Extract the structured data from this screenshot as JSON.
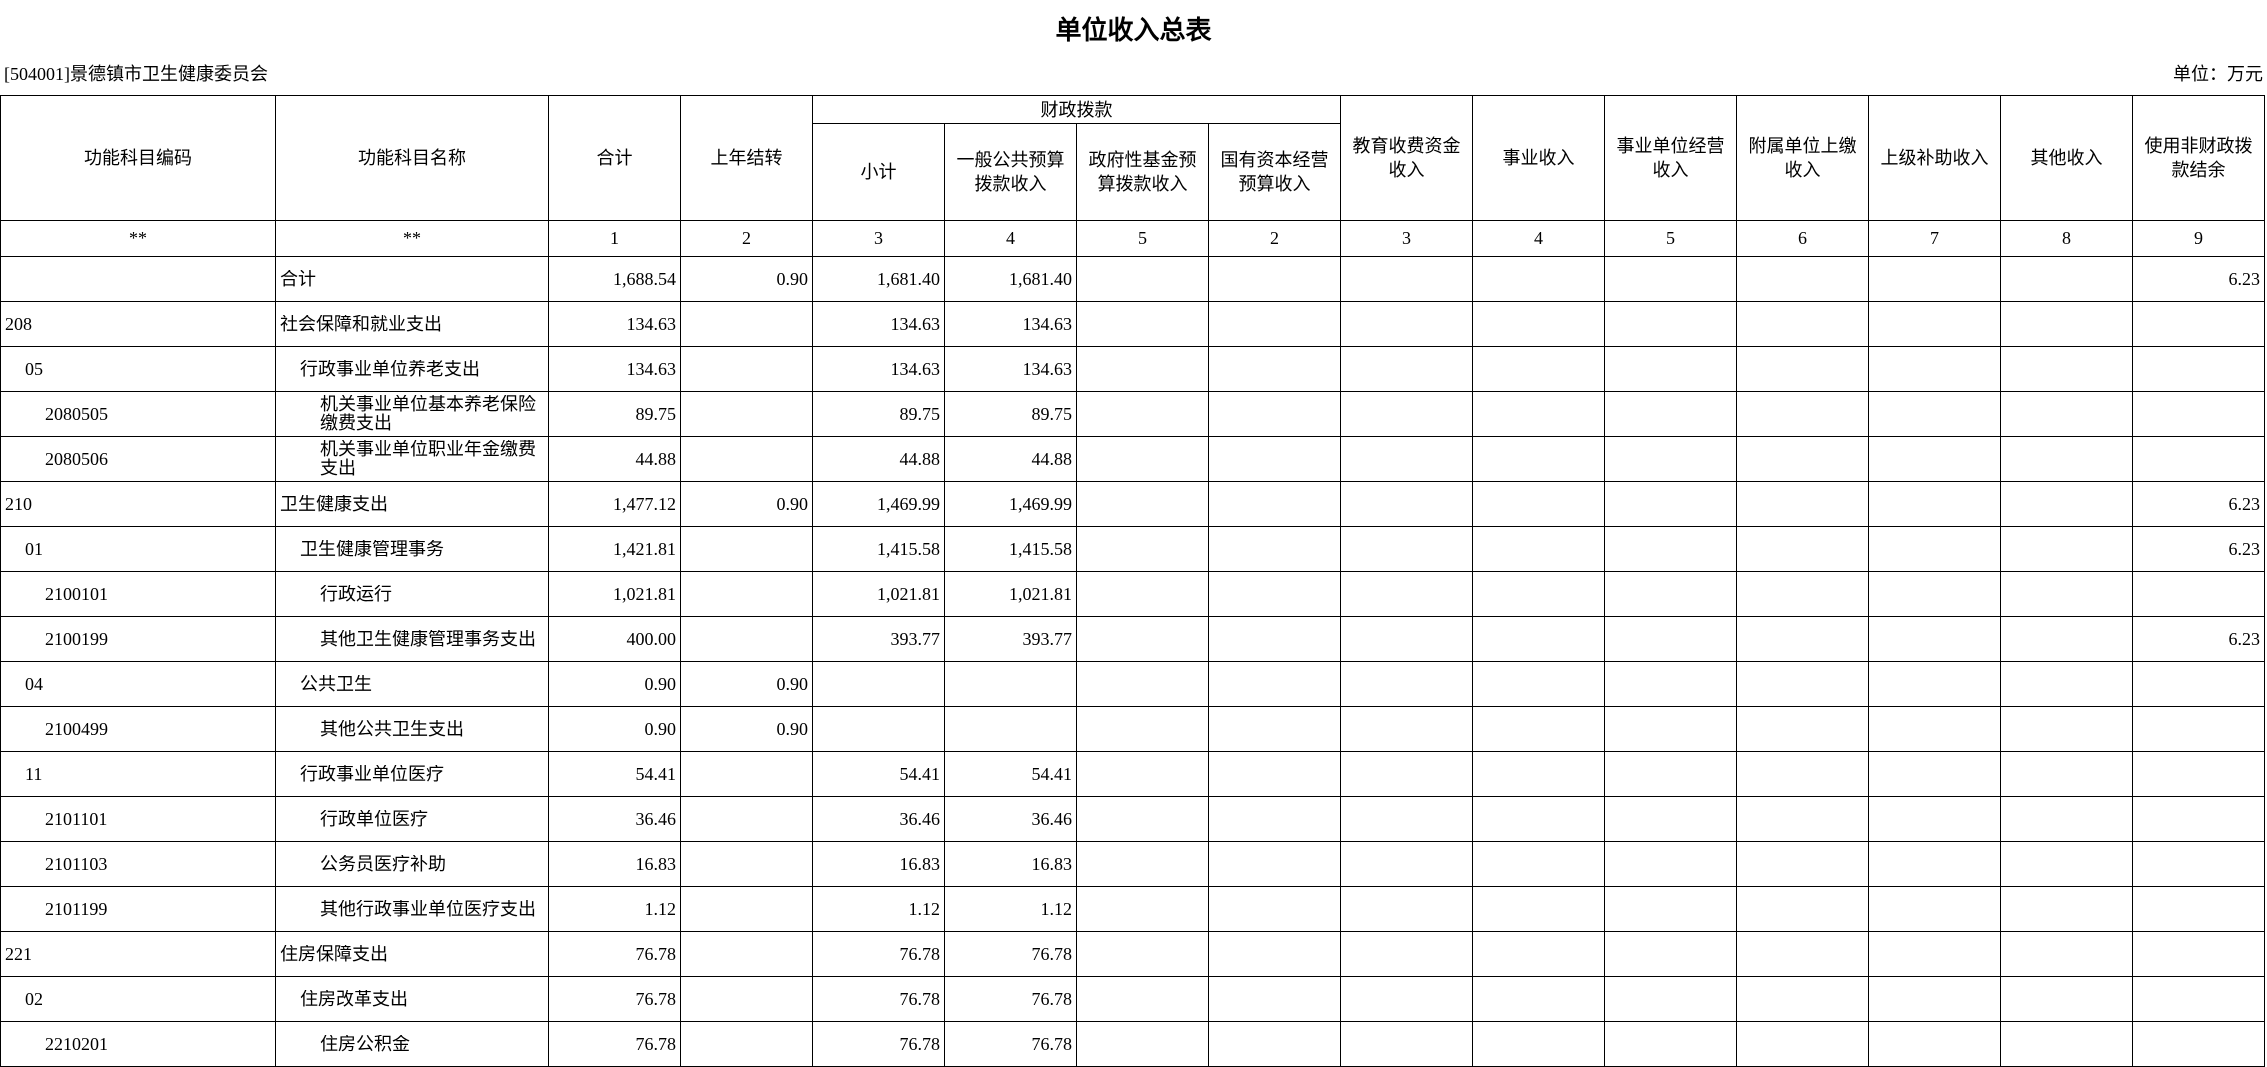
{
  "header": {
    "title": "单位收入总表",
    "org": "[504001]景德镇市卫生健康委员会",
    "unit": "单位：万元"
  },
  "table": {
    "group": "财政拨款",
    "head_left": [
      "功能科目编码",
      "功能科目名称",
      "合计",
      "上年结转"
    ],
    "head_group": [
      "小计",
      "一般公共预算拨款收入",
      "政府性基金预算拨款收入",
      "国有资本经营预算收入"
    ],
    "head_right": [
      "教育收费资金收入",
      "事业收入",
      "事业单位经营收入",
      "附属单位上缴收入",
      "上级补助收入",
      "其他收入",
      "使用非财政拨款结余"
    ],
    "numbers": [
      "**",
      "**",
      "1",
      "2",
      "3",
      "4",
      "5",
      "2",
      "3",
      "4",
      "5",
      "6",
      "7",
      "8",
      "9"
    ],
    "rows": [
      [
        null,
        "合计",
        "1,688.54",
        "0.90",
        "1,681.40",
        "1,681.40",
        null,
        null,
        null,
        null,
        null,
        null,
        null,
        null,
        "6.23"
      ],
      [
        "208",
        "社会保障和就业支出",
        "134.63",
        null,
        "134.63",
        "134.63",
        null,
        null,
        null,
        null,
        null,
        null,
        null,
        null,
        null
      ],
      [
        "05",
        "行政事业单位养老支出",
        "134.63",
        null,
        "134.63",
        "134.63",
        null,
        null,
        null,
        null,
        null,
        null,
        null,
        null,
        null
      ],
      [
        "2080505",
        "机关事业单位基本养老保险缴费支出",
        "89.75",
        null,
        "89.75",
        "89.75",
        null,
        null,
        null,
        null,
        null,
        null,
        null,
        null,
        null
      ],
      [
        "2080506",
        "机关事业单位职业年金缴费支出",
        "44.88",
        null,
        "44.88",
        "44.88",
        null,
        null,
        null,
        null,
        null,
        null,
        null,
        null,
        null
      ],
      [
        "210",
        "卫生健康支出",
        "1,477.12",
        "0.90",
        "1,469.99",
        "1,469.99",
        null,
        null,
        null,
        null,
        null,
        null,
        null,
        null,
        "6.23"
      ],
      [
        "01",
        "卫生健康管理事务",
        "1,421.81",
        null,
        "1,415.58",
        "1,415.58",
        null,
        null,
        null,
        null,
        null,
        null,
        null,
        null,
        "6.23"
      ],
      [
        "2100101",
        "行政运行",
        "1,021.81",
        null,
        "1,021.81",
        "1,021.81",
        null,
        null,
        null,
        null,
        null,
        null,
        null,
        null,
        null
      ],
      [
        "2100199",
        "其他卫生健康管理事务支出",
        "400.00",
        null,
        "393.77",
        "393.77",
        null,
        null,
        null,
        null,
        null,
        null,
        null,
        null,
        "6.23"
      ],
      [
        "04",
        "公共卫生",
        "0.90",
        "0.90",
        null,
        null,
        null,
        null,
        null,
        null,
        null,
        null,
        null,
        null,
        null
      ],
      [
        "2100499",
        "其他公共卫生支出",
        "0.90",
        "0.90",
        null,
        null,
        null,
        null,
        null,
        null,
        null,
        null,
        null,
        null,
        null
      ],
      [
        "11",
        "行政事业单位医疗",
        "54.41",
        null,
        "54.41",
        "54.41",
        null,
        null,
        null,
        null,
        null,
        null,
        null,
        null,
        null
      ],
      [
        "2101101",
        "行政单位医疗",
        "36.46",
        null,
        "36.46",
        "36.46",
        null,
        null,
        null,
        null,
        null,
        null,
        null,
        null,
        null
      ],
      [
        "2101103",
        "公务员医疗补助",
        "16.83",
        null,
        "16.83",
        "16.83",
        null,
        null,
        null,
        null,
        null,
        null,
        null,
        null,
        null
      ],
      [
        "2101199",
        "其他行政事业单位医疗支出",
        "1.12",
        null,
        "1.12",
        "1.12",
        null,
        null,
        null,
        null,
        null,
        null,
        null,
        null,
        null
      ],
      [
        "221",
        "住房保障支出",
        "76.78",
        null,
        "76.78",
        "76.78",
        null,
        null,
        null,
        null,
        null,
        null,
        null,
        null,
        null
      ],
      [
        "02",
        "住房改革支出",
        "76.78",
        null,
        "76.78",
        "76.78",
        null,
        null,
        null,
        null,
        null,
        null,
        null,
        null,
        null
      ],
      [
        "2210201",
        "住房公积金",
        "76.78",
        null,
        "76.78",
        "76.78",
        null,
        null,
        null,
        null,
        null,
        null,
        null,
        null,
        null
      ]
    ]
  }
}
